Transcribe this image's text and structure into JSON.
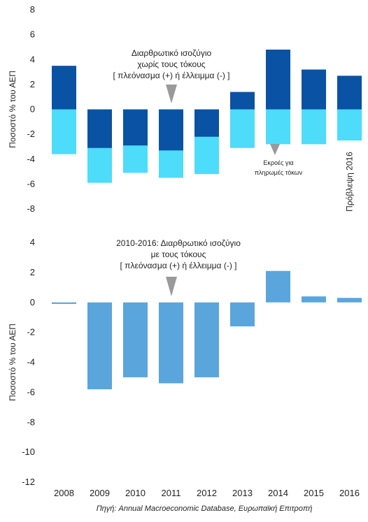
{
  "chart_data": [
    {
      "type": "bar",
      "title": "",
      "ylabel": "Ποσοστό % του ΑΕΠ",
      "ylim": [
        -8,
        8
      ],
      "yticks": [
        8,
        6,
        4,
        2,
        0,
        -2,
        -4,
        -6,
        -8
      ],
      "categories": [
        "2008",
        "2009",
        "2010",
        "2011",
        "2012",
        "2013",
        "2014",
        "2015",
        "2016"
      ],
      "series": [
        {
          "name": "",
          "color": "#0a52a3",
          "values": [
            3.5,
            -3.1,
            -2.9,
            -3.3,
            -2.2,
            1.4,
            4.8,
            3.2,
            2.7
          ]
        },
        {
          "name": "Εκροές για πληρωμές τόκων",
          "color": "#4ddcfa",
          "values": [
            -3.6,
            -5.9,
            -5.1,
            -5.5,
            -5.2,
            -3.1,
            -2.8,
            -2.8,
            -2.5
          ]
        }
      ],
      "annotation": {
        "lines": [
          "Διαρθρωτικό ισοζύγιο",
          "χωρίς τους τόκους",
          "[ πλεόνασμα (+) ή έλλειμμα (-) ]"
        ]
      },
      "interest_note": [
        "Εκροές για",
        "πληρωμές τόκων"
      ],
      "forecast_label": "Πρόβλεψη 2016"
    },
    {
      "type": "bar",
      "title": "",
      "ylabel": "Ποσοστό % του ΑΕΠ",
      "ylim": [
        -12,
        4
      ],
      "yticks": [
        4,
        2,
        0,
        -2,
        -4,
        -6,
        -8,
        -10,
        -12
      ],
      "categories": [
        "2008",
        "2009",
        "2010",
        "2011",
        "2012",
        "2013",
        "2014",
        "2015",
        "2016"
      ],
      "series": [
        {
          "name": "",
          "color": "#5aa5dc",
          "values": [
            -0.1,
            -5.8,
            -5.0,
            -5.4,
            -5.0,
            -1.6,
            2.1,
            0.4,
            0.3
          ]
        }
      ],
      "annotation": {
        "lines": [
          "2010-2016: Διαρθρωτικό ισοζύγιο",
          "με τους τόκους",
          "[ πλεόνασμα (+) ή έλλειμμα (-) ]"
        ]
      }
    }
  ],
  "source": "Πηγή: Annual Macroeconomic Database, Ευρωπαϊκή Επιτροπή"
}
